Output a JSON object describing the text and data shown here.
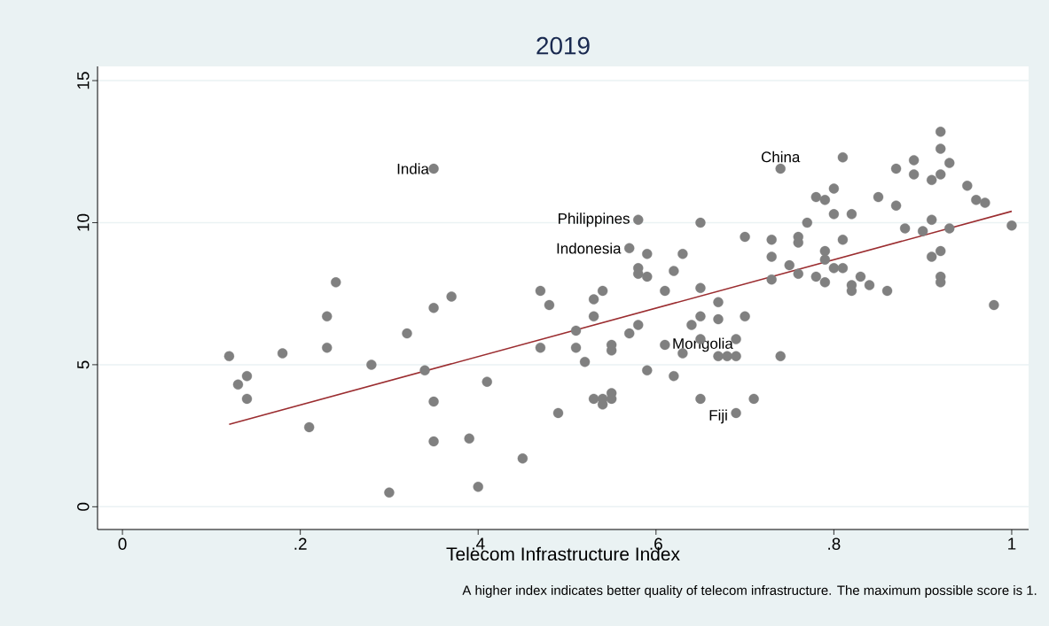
{
  "chart_data": {
    "type": "scatter",
    "title": "2019",
    "xlabel": "Telecom Infrastructure Index",
    "xlim": [
      -0.028,
      1.019
    ],
    "ylim": [
      -0.8,
      15.5
    ],
    "xticks": [
      0,
      {
        "value": 0.2,
        "label": ".2"
      },
      {
        "value": 0.4,
        "label": ".4"
      },
      {
        "value": 0.6,
        "label": ".6"
      },
      {
        "value": 0.8,
        "label": ".8"
      },
      1
    ],
    "yticks": [
      0,
      5,
      10,
      15
    ],
    "grid": "y",
    "marker": "circle",
    "series": [
      {
        "color": "#808080",
        "x": [
          0.12,
          0.13,
          0.14,
          0.14,
          0.18,
          0.21,
          0.23,
          0.23,
          0.24,
          0.28,
          0.3,
          0.32,
          0.34,
          0.35,
          0.35,
          0.35,
          0.35,
          0.37,
          0.39,
          0.4,
          0.41,
          0.45,
          0.47,
          0.47,
          0.48,
          0.49,
          0.51,
          0.51,
          0.52,
          0.53,
          0.53,
          0.53,
          0.54,
          0.54,
          0.54,
          0.55,
          0.55,
          0.55,
          0.55,
          0.57,
          0.57,
          0.58,
          0.58,
          0.58,
          0.58,
          0.59,
          0.59,
          0.59,
          0.61,
          0.61,
          0.62,
          0.62,
          0.63,
          0.63,
          0.64,
          0.65,
          0.65,
          0.65,
          0.65,
          0.65,
          0.67,
          0.67,
          0.67,
          0.68,
          0.69,
          0.69,
          0.69,
          0.7,
          0.7,
          0.71,
          0.73,
          0.73,
          0.73,
          0.74,
          0.74,
          0.75,
          0.76,
          0.76,
          0.76,
          0.77,
          0.78,
          0.78,
          0.79,
          0.79,
          0.79,
          0.79,
          0.8,
          0.8,
          0.8,
          0.81,
          0.81,
          0.81,
          0.82,
          0.82,
          0.82,
          0.83,
          0.84,
          0.85,
          0.86,
          0.87,
          0.87,
          0.88,
          0.89,
          0.89,
          0.9,
          0.91,
          0.91,
          0.91,
          0.92,
          0.92,
          0.92,
          0.92,
          0.92,
          0.92,
          0.93,
          0.93,
          0.95,
          0.96,
          0.97,
          0.98,
          1.0
        ],
        "values": [
          5.3,
          4.3,
          4.6,
          3.8,
          5.4,
          2.8,
          5.6,
          6.7,
          7.9,
          5.0,
          0.5,
          6.1,
          4.8,
          11.9,
          7.0,
          3.7,
          2.3,
          7.4,
          2.4,
          0.7,
          4.4,
          1.7,
          7.6,
          5.6,
          7.1,
          3.3,
          6.2,
          5.6,
          5.1,
          7.3,
          6.7,
          3.8,
          7.6,
          3.8,
          3.6,
          5.7,
          5.5,
          4.0,
          3.8,
          9.1,
          6.1,
          10.1,
          8.4,
          8.2,
          6.4,
          8.9,
          8.1,
          4.8,
          7.6,
          5.7,
          8.3,
          4.6,
          8.9,
          5.4,
          6.4,
          10.0,
          7.7,
          6.7,
          5.9,
          3.8,
          7.2,
          6.6,
          5.3,
          5.3,
          5.9,
          5.3,
          3.3,
          9.5,
          6.7,
          3.8,
          9.4,
          8.8,
          8.0,
          11.9,
          5.3,
          8.5,
          9.5,
          9.3,
          8.2,
          10.0,
          10.9,
          8.1,
          10.8,
          9.0,
          8.7,
          7.9,
          11.2,
          10.3,
          8.4,
          12.3,
          9.4,
          8.4,
          10.3,
          7.8,
          7.6,
          8.1,
          7.8,
          10.9,
          7.6,
          11.9,
          10.6,
          9.8,
          12.2,
          11.7,
          9.7,
          11.5,
          10.1,
          8.8,
          13.2,
          12.6,
          11.7,
          9.0,
          8.1,
          7.9,
          12.1,
          9.8,
          11.3,
          10.8,
          10.7,
          7.1,
          9.9
        ]
      },
      {
        "type": "line",
        "marker": "none",
        "color": "#9b2d30",
        "x": [
          0.12,
          1.0
        ],
        "values": [
          2.9,
          10.4
        ]
      }
    ],
    "annotations": [
      {
        "text": "India",
        "x": 0.35,
        "y": 11.9
      },
      {
        "text": "China",
        "x": 0.74,
        "y": 11.9
      },
      {
        "text": "Philippines",
        "x": 0.58,
        "y": 10.1
      },
      {
        "text": "Indonesia",
        "x": 0.57,
        "y": 9.1
      },
      {
        "text": "Mongolia",
        "x": 0.61,
        "y": 5.7
      },
      {
        "text": "Fiji",
        "x": 0.69,
        "y": 3.3
      },
      "A higher index indicates better quality of telecom infrastructure. The maximum possible score is 1."
    ]
  }
}
